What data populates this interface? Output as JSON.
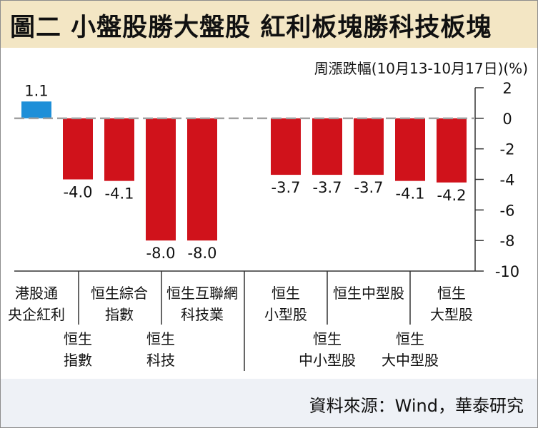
{
  "title": "圖二 小盤股勝大盤股 紅利板塊勝科技板塊",
  "unit_label": "周漲跌幅(10月13-10月17日)(%)",
  "source": "資料來源：Wind，華泰研究",
  "chart_data": {
    "type": "bar",
    "categories": [
      {
        "lines": [
          "港股通",
          "央企紅利"
        ],
        "row": 0
      },
      {
        "lines": [
          "恒生",
          "指數"
        ],
        "row": 1
      },
      {
        "lines": [
          "恒生綜合",
          "指數"
        ],
        "row": 0
      },
      {
        "lines": [
          "恒生",
          "科技"
        ],
        "row": 1
      },
      {
        "lines": [
          "恒生互聯網",
          "科技業"
        ],
        "row": 0
      },
      {
        "lines": [
          "恒生",
          "小型股"
        ],
        "row": 0
      },
      {
        "lines": [
          "恒生",
          "中小型股"
        ],
        "row": 1
      },
      {
        "lines": [
          "恒生中型股"
        ],
        "row": 0
      },
      {
        "lines": [
          "恒生",
          "大中型股"
        ],
        "row": 1
      },
      {
        "lines": [
          "恒生",
          "大型股"
        ],
        "row": 0
      }
    ],
    "values": [
      1.1,
      -4.0,
      -4.1,
      -8.0,
      -8.0,
      -3.7,
      -3.7,
      -3.7,
      -4.1,
      -4.2
    ],
    "value_labels": [
      "1.1",
      "-4.0",
      "-4.1",
      "-8.0",
      "-8.0",
      "-3.7",
      "-3.7",
      "-3.7",
      "-4.1",
      "-4.2"
    ],
    "ylim": [
      -10,
      2
    ],
    "yticks": [
      "2",
      "0",
      "-2",
      "-4",
      "-6",
      "-8",
      "-10"
    ],
    "colors": {
      "positive": "#1e8fd8",
      "negative": "#d0121b",
      "zero_line": "#a0a0a0",
      "axis": "#333333"
    },
    "gap_after_index": 4,
    "axis_side": "right"
  }
}
